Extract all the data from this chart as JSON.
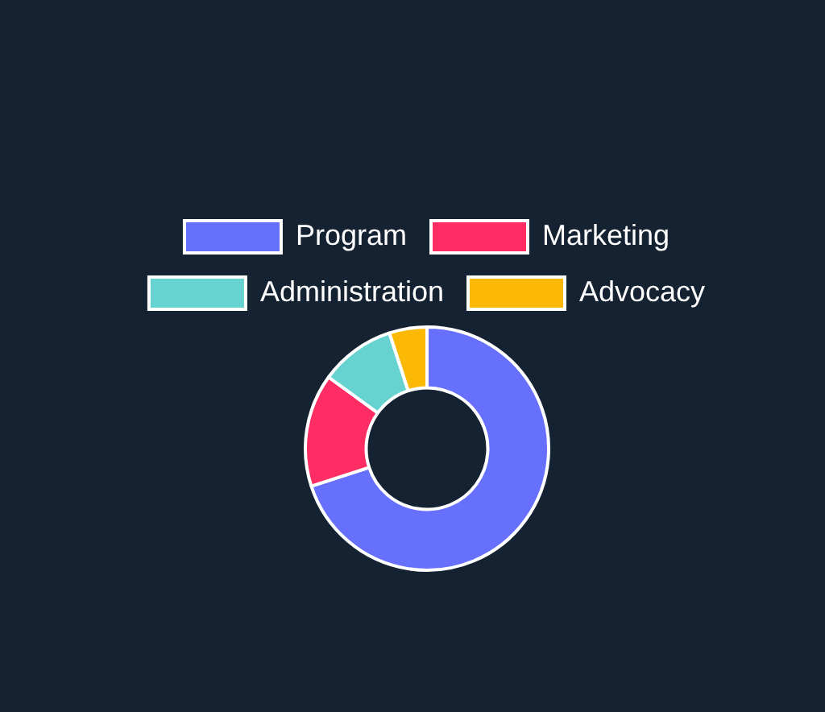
{
  "chart_data": {
    "type": "donut",
    "categories": [
      "Program",
      "Marketing",
      "Administration",
      "Advocacy"
    ],
    "values": [
      70,
      15,
      10,
      5
    ],
    "colors": [
      "#6670fd",
      "#ff2d63",
      "#66d3d0",
      "#fbb906"
    ],
    "legend": "top"
  }
}
